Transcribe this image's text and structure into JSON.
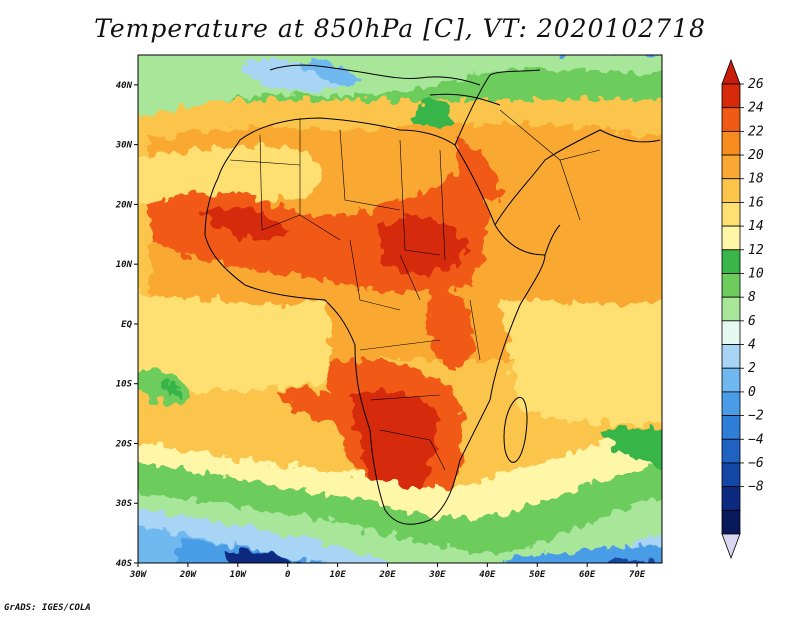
{
  "title": "Temperature at 850hPa [C], VT: 2020102718",
  "credit": "GrADS: IGES/COLA",
  "map": {
    "lon_range": [
      -30,
      75
    ],
    "lat_range": [
      -40,
      45
    ],
    "lon_ticks": [
      {
        "value": -30,
        "label": "30W"
      },
      {
        "value": -20,
        "label": "20W"
      },
      {
        "value": -10,
        "label": "10W"
      },
      {
        "value": 0,
        "label": "0"
      },
      {
        "value": 10,
        "label": "10E"
      },
      {
        "value": 20,
        "label": "20E"
      },
      {
        "value": 30,
        "label": "30E"
      },
      {
        "value": 40,
        "label": "40E"
      },
      {
        "value": 50,
        "label": "50E"
      },
      {
        "value": 60,
        "label": "60E"
      },
      {
        "value": 70,
        "label": "70E"
      }
    ],
    "lat_ticks": [
      {
        "value": 40,
        "label": "40N"
      },
      {
        "value": 30,
        "label": "30N"
      },
      {
        "value": 20,
        "label": "20N"
      },
      {
        "value": 10,
        "label": "10N"
      },
      {
        "value": 0,
        "label": "EQ"
      },
      {
        "value": -10,
        "label": "10S"
      },
      {
        "value": -20,
        "label": "20S"
      },
      {
        "value": -30,
        "label": "30S"
      },
      {
        "value": -40,
        "label": "40S"
      }
    ]
  },
  "colorbar": {
    "levels": [
      26,
      24,
      22,
      20,
      18,
      16,
      14,
      12,
      10,
      8,
      6,
      4,
      2,
      0,
      -2,
      -4,
      -6,
      -8
    ],
    "colors": [
      "#d62a0a",
      "#f05a14",
      "#f68c1e",
      "#f9a933",
      "#fbc54c",
      "#fddf72",
      "#fff6a8",
      "#39b54a",
      "#6ccc5c",
      "#a8e69a",
      "#e6f8f2",
      "#a8d4f5",
      "#70b8f0",
      "#4a9ce6",
      "#2f7fd9",
      "#1f62c2",
      "#1446a6",
      "#0b2a80",
      "#081a5c"
    ],
    "top_color": "#c91f0a",
    "bottom_color": "#d9d6f2"
  }
}
